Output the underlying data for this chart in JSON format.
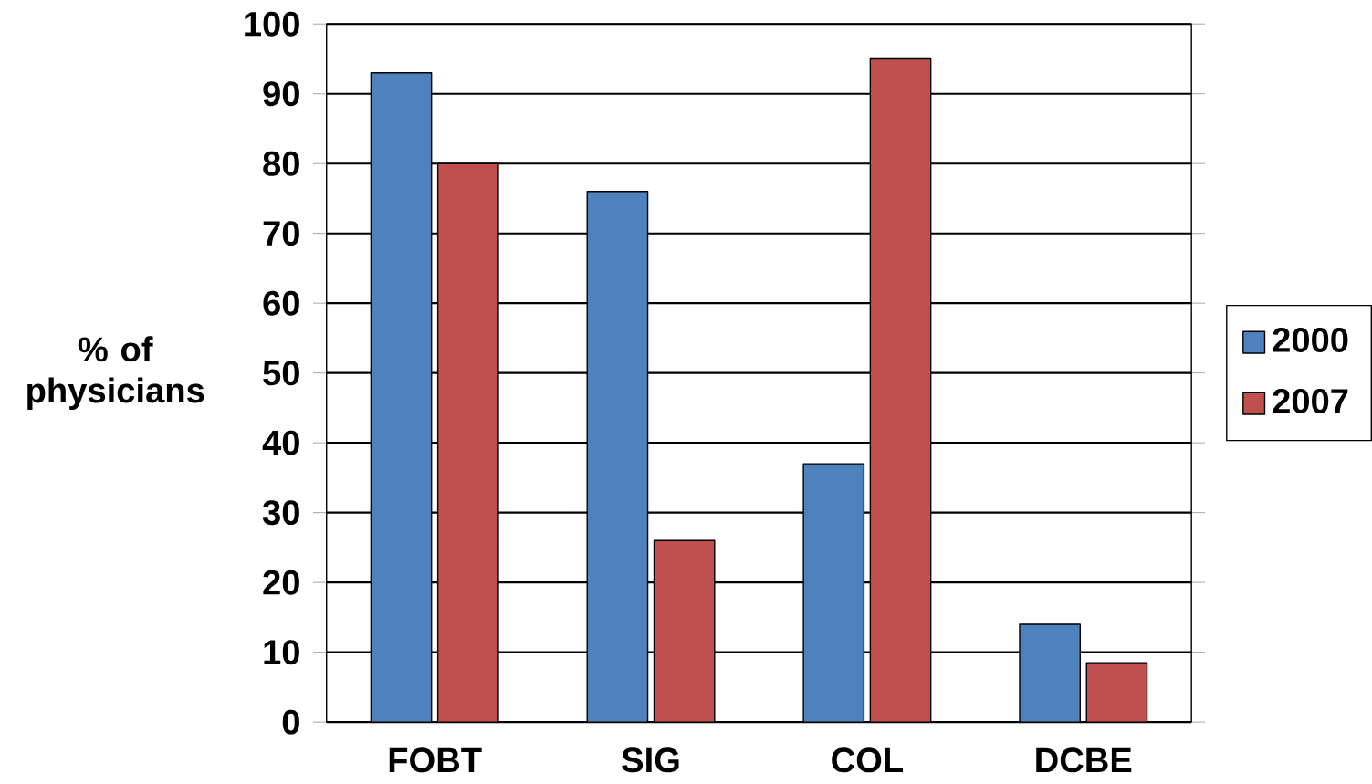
{
  "chart_data": {
    "type": "bar",
    "ylabel": "% of physicians",
    "categories": [
      "FOBT",
      "SIG",
      "COL",
      "DCBE"
    ],
    "series": [
      {
        "name": "2000",
        "color": "#4f81bd",
        "values": [
          93,
          76,
          37,
          14
        ]
      },
      {
        "name": "2007",
        "color": "#c0504d",
        "values": [
          80,
          26,
          95,
          8.5
        ]
      }
    ],
    "ylim": [
      0,
      100
    ],
    "yticks": [
      0,
      10,
      20,
      30,
      40,
      50,
      60,
      70,
      80,
      90,
      100
    ],
    "grid": "y",
    "legend": "right"
  }
}
